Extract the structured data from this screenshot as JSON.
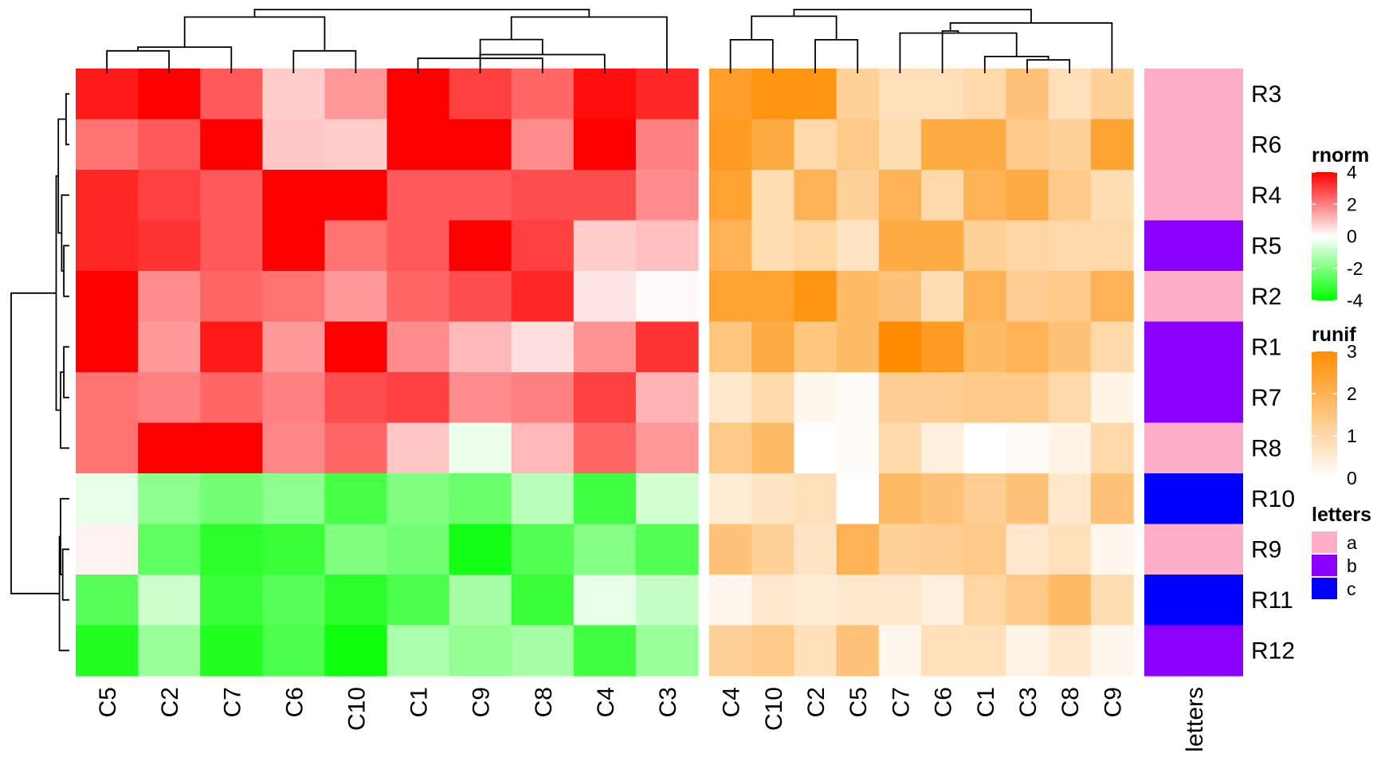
{
  "chart_data": {
    "type": "heatmap",
    "rows": [
      "R3",
      "R6",
      "R4",
      "R5",
      "R2",
      "R1",
      "R7",
      "R8",
      "R10",
      "R9",
      "R11",
      "R12"
    ],
    "heatmaps": [
      {
        "name": "rnorm",
        "columns": [
          "C5",
          "C2",
          "C7",
          "C6",
          "C10",
          "C1",
          "C9",
          "C8",
          "C4",
          "C3"
        ],
        "colormap": {
          "breaks": [
            -4,
            0,
            4
          ],
          "colors": [
            "#00FF00",
            "#FFFFFF",
            "#FF0000"
          ]
        },
        "legend_ticks": [
          4,
          2,
          0,
          -2,
          -4
        ],
        "values": [
          [
            3.6,
            4.0,
            2.6,
            0.8,
            1.6,
            4.0,
            3.0,
            2.4,
            3.8,
            3.4
          ],
          [
            2.2,
            2.6,
            4.0,
            0.9,
            0.8,
            4.0,
            4.0,
            1.8,
            4.0,
            2.0
          ],
          [
            3.4,
            3.0,
            2.6,
            4.0,
            4.0,
            2.6,
            2.6,
            2.8,
            2.8,
            1.8
          ],
          [
            3.4,
            3.2,
            2.6,
            4.0,
            2.2,
            2.6,
            4.0,
            3.0,
            0.8,
            1.0
          ],
          [
            4.0,
            1.8,
            2.4,
            2.2,
            1.6,
            2.4,
            2.8,
            3.4,
            0.4,
            0.1
          ],
          [
            4.0,
            1.6,
            3.6,
            1.6,
            4.0,
            1.8,
            1.1,
            0.5,
            1.7,
            3.2
          ],
          [
            2.2,
            2.0,
            2.4,
            2.0,
            2.8,
            3.0,
            1.8,
            2.0,
            3.0,
            1.2
          ],
          [
            2.2,
            4.0,
            4.0,
            1.9,
            2.4,
            0.9,
            -0.3,
            1.1,
            2.4,
            1.6
          ],
          [
            -0.4,
            -1.8,
            -2.2,
            -1.8,
            -2.9,
            -2.0,
            -2.3,
            -1.1,
            -3.0,
            -0.7
          ],
          [
            0.2,
            -2.5,
            -3.3,
            -3.1,
            -2.0,
            -2.2,
            -3.7,
            -2.7,
            -1.9,
            -2.7
          ],
          [
            -2.6,
            -0.8,
            -3.1,
            -2.6,
            -3.3,
            -2.8,
            -1.4,
            -3.1,
            -0.4,
            -0.9
          ],
          [
            -3.5,
            -1.6,
            -3.5,
            -2.8,
            -3.8,
            -1.3,
            -1.7,
            -1.4,
            -3.0,
            -1.6
          ]
        ]
      },
      {
        "name": "runif",
        "columns": [
          "C4",
          "C10",
          "C2",
          "C5",
          "C7",
          "C6",
          "C1",
          "C3",
          "C8",
          "C9"
        ],
        "colormap": {
          "breaks": [
            0,
            3
          ],
          "colors": [
            "#FFFFFF",
            "#FF8C00"
          ]
        },
        "legend_ticks": [
          3,
          2,
          1,
          0
        ],
        "values": [
          [
            2.5,
            2.8,
            2.8,
            1.2,
            0.8,
            0.8,
            1.0,
            1.6,
            0.8,
            1.2
          ],
          [
            2.6,
            2.2,
            1.0,
            1.4,
            0.9,
            2.2,
            2.2,
            1.4,
            1.2,
            2.4
          ],
          [
            2.4,
            0.9,
            2.0,
            1.2,
            2.0,
            1.0,
            2.0,
            2.2,
            1.4,
            0.9
          ],
          [
            2.0,
            0.9,
            1.1,
            0.7,
            2.2,
            2.2,
            1.2,
            1.1,
            1.0,
            1.0
          ],
          [
            2.4,
            2.4,
            2.8,
            1.8,
            1.6,
            0.9,
            2.0,
            1.3,
            1.4,
            2.0
          ],
          [
            1.5,
            2.2,
            1.5,
            1.8,
            3.0,
            2.6,
            1.8,
            2.0,
            1.6,
            1.0
          ],
          [
            0.6,
            1.0,
            0.2,
            0.1,
            1.3,
            1.3,
            1.4,
            1.4,
            1.0,
            0.3
          ],
          [
            1.4,
            1.8,
            0.0,
            0.1,
            1.0,
            0.4,
            0.0,
            0.1,
            0.3,
            1.0
          ],
          [
            0.5,
            0.7,
            0.8,
            0.0,
            1.8,
            1.6,
            1.3,
            1.6,
            0.6,
            1.6
          ],
          [
            1.6,
            1.2,
            0.7,
            2.0,
            1.2,
            1.3,
            1.4,
            0.6,
            0.8,
            0.2
          ],
          [
            0.2,
            0.6,
            0.5,
            0.6,
            0.6,
            0.4,
            1.1,
            1.4,
            1.8,
            0.9
          ],
          [
            1.2,
            1.4,
            0.8,
            1.6,
            0.2,
            0.8,
            0.8,
            0.3,
            0.6,
            0.2
          ]
        ]
      }
    ],
    "annotation": {
      "name": "letters",
      "values": [
        "a",
        "a",
        "a",
        "b",
        "a",
        "b",
        "b",
        "a",
        "c",
        "a",
        "c",
        "b"
      ],
      "levels": [
        "a",
        "b",
        "c"
      ],
      "colors": {
        "a": "#FFAEC9",
        "b": "#8B00FF",
        "c": "#0000FF"
      }
    },
    "column_dendrograms": [
      {
        "merges": [
          [
            -6,
            -8
          ],
          [
            -7,
            -9
          ],
          [
            -1,
            -2
          ],
          [
            -4,
            -5
          ],
          [
            -3,
            3
          ],
          [
            2,
            1
          ],
          [
            -10,
            6
          ],
          [
            5,
            4
          ],
          [
            8,
            7
          ]
        ],
        "heights": [
          0.2,
          0.25,
          0.3,
          0.3,
          0.35,
          0.45,
          0.75,
          0.75,
          0.85
        ]
      },
      {
        "merges": [
          [
            -8,
            -9
          ],
          [
            -7,
            1
          ],
          [
            -3,
            -4
          ],
          [
            -1,
            -2
          ],
          [
            -5,
            2
          ],
          [
            -6,
            5
          ],
          [
            -10,
            6
          ],
          [
            4,
            3
          ],
          [
            8,
            7
          ]
        ],
        "heights": [
          0.2,
          0.25,
          0.5,
          0.5,
          0.6,
          0.63,
          0.75,
          0.85,
          0.95
        ]
      }
    ],
    "row_dendrogram": {
      "merges": [
        [
          -1,
          -2
        ],
        [
          -4,
          -5
        ],
        [
          -6,
          -7
        ],
        [
          -10,
          -11
        ],
        [
          -9,
          4
        ],
        [
          -3,
          2
        ],
        [
          -8,
          3
        ],
        [
          -12,
          5
        ],
        [
          6,
          1
        ],
        [
          9,
          7
        ],
        [
          10,
          8
        ]
      ],
      "heights": [
        0.03,
        0.05,
        0.05,
        0.06,
        0.08,
        0.07,
        0.08,
        0.09,
        0.1,
        0.12,
        0.53
      ]
    }
  }
}
